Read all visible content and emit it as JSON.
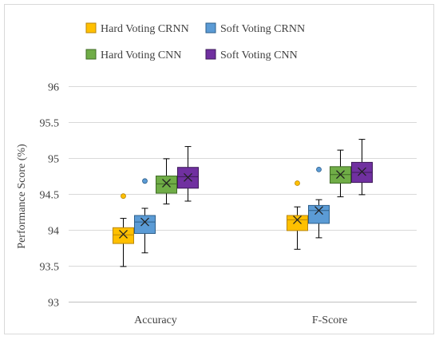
{
  "chart_data": {
    "type": "boxplot",
    "ylabel": "Performance Score (%)",
    "ylim": [
      93,
      96
    ],
    "yticks": [
      93,
      93.5,
      94,
      94.5,
      95,
      95.5,
      96
    ],
    "ytick_labels": [
      "93",
      "93.5",
      "94",
      "94.5",
      "95",
      "95.5",
      "96"
    ],
    "grid": true,
    "legend_position": "top",
    "categories": [
      "Accuracy",
      "F-Score"
    ],
    "series": [
      {
        "name": "Hard Voting CRNN",
        "color": "#ffc000",
        "stroke": "#b8860b",
        "boxes": [
          {
            "min": 93.49,
            "q1": 93.81,
            "median": 93.93,
            "q3": 94.03,
            "max": 94.16,
            "mean": 93.94,
            "outliers": [
              94.47
            ]
          },
          {
            "min": 93.73,
            "q1": 93.99,
            "median": 94.14,
            "q3": 94.2,
            "max": 94.32,
            "mean": 94.14,
            "outliers": [
              94.65
            ]
          }
        ]
      },
      {
        "name": "Soft Voting CRNN",
        "color": "#5b9bd5",
        "stroke": "#2e5f8a",
        "boxes": [
          {
            "min": 93.68,
            "q1": 93.95,
            "median": 94.11,
            "q3": 94.2,
            "max": 94.3,
            "mean": 94.11,
            "outliers": [
              94.68
            ]
          },
          {
            "min": 93.89,
            "q1": 94.09,
            "median": 94.27,
            "q3": 94.34,
            "max": 94.42,
            "mean": 94.27,
            "outliers": [
              94.84
            ]
          }
        ]
      },
      {
        "name": "Hard Voting CNN",
        "color": "#70ad47",
        "stroke": "#3f6b26",
        "boxes": [
          {
            "min": 94.36,
            "q1": 94.51,
            "median": 94.64,
            "q3": 94.75,
            "max": 94.99,
            "mean": 94.65,
            "outliers": []
          },
          {
            "min": 94.46,
            "q1": 94.65,
            "median": 94.77,
            "q3": 94.88,
            "max": 95.11,
            "mean": 94.77,
            "outliers": []
          }
        ]
      },
      {
        "name": "Soft Voting CNN",
        "color": "#7030a0",
        "stroke": "#3d1a58",
        "boxes": [
          {
            "min": 94.4,
            "q1": 94.58,
            "median": 94.74,
            "q3": 94.87,
            "max": 95.16,
            "mean": 94.73,
            "outliers": []
          },
          {
            "min": 94.49,
            "q1": 94.66,
            "median": 94.8,
            "q3": 94.94,
            "max": 95.26,
            "mean": 94.81,
            "outliers": []
          }
        ]
      }
    ]
  }
}
